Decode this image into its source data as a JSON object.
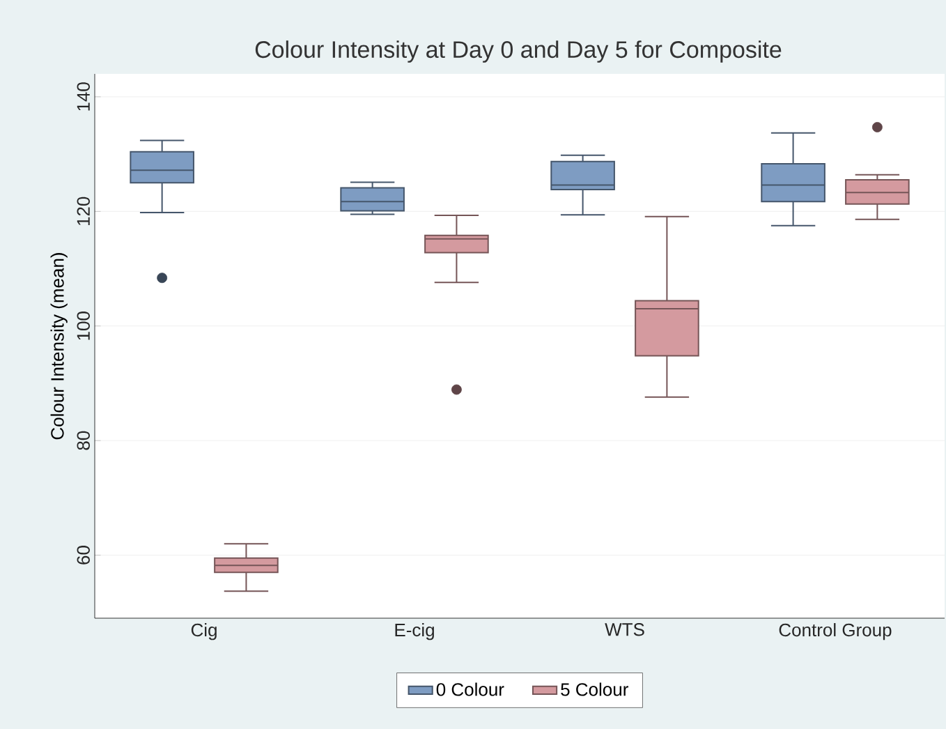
{
  "chart_data": {
    "type": "box",
    "title": "Colour Intensity at Day 0 and Day 5 for Composite",
    "ylabel": "Colour Intensity (mean)",
    "categories": [
      "Cig",
      "E-cig",
      "WTS",
      "Control Group"
    ],
    "ylim": [
      49,
      144
    ],
    "yticks": [
      60,
      80,
      100,
      120,
      140
    ],
    "grid": "y",
    "legend": "bottom",
    "series": [
      {
        "name": "0 Colour",
        "color": "#7e9cc2",
        "boxes": [
          {
            "low": 119.8,
            "q1": 125.0,
            "median": 127.2,
            "q3": 130.4,
            "high": 132.4,
            "outliers": [
              108.4
            ]
          },
          {
            "low": 119.5,
            "q1": 120.1,
            "median": 121.7,
            "q3": 124.1,
            "high": 125.1
          },
          {
            "low": 119.4,
            "q1": 123.8,
            "median": 124.6,
            "q3": 128.7,
            "high": 129.8
          },
          {
            "low": 117.5,
            "q1": 121.7,
            "median": 124.6,
            "q3": 128.3,
            "high": 133.7
          }
        ]
      },
      {
        "name": "5 Colour",
        "color": "#d49a9f",
        "boxes": [
          {
            "low": 53.7,
            "q1": 57.0,
            "median": 58.2,
            "q3": 59.5,
            "high": 62.0
          },
          {
            "low": 107.6,
            "q1": 112.8,
            "median": 115.2,
            "q3": 115.8,
            "high": 119.3,
            "outliers": [
              88.9
            ]
          },
          {
            "low": 87.6,
            "q1": 94.8,
            "median": 103.0,
            "q3": 104.4,
            "high": 119.1
          },
          {
            "low": 118.6,
            "q1": 121.3,
            "median": 123.3,
            "q3": 125.5,
            "high": 126.4,
            "outliers": [
              134.7
            ]
          }
        ]
      }
    ]
  }
}
